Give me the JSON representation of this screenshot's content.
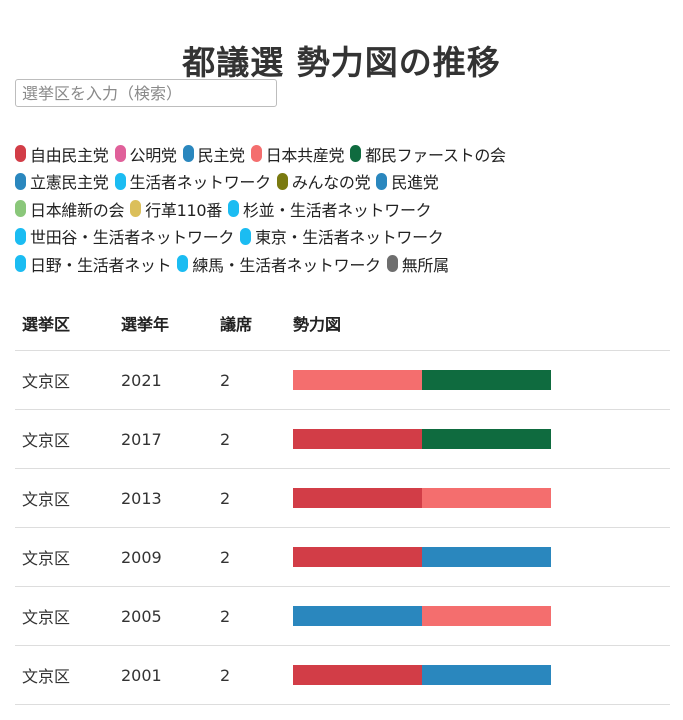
{
  "page": {
    "title": "都議選 勢力図の推移"
  },
  "search": {
    "placeholder": "選挙区を入力（検索）",
    "value": ""
  },
  "legend_rows": [
    [
      {
        "label": "自由民主党",
        "color": "#d23d47"
      },
      {
        "label": "公明党",
        "color": "#e0609a"
      },
      {
        "label": "民主党",
        "color": "#2a87be"
      },
      {
        "label": "日本共産党",
        "color": "#f46e6e"
      },
      {
        "label": "都民ファーストの会",
        "color": "#0f6b3f"
      }
    ],
    [
      {
        "label": "立憲民主党",
        "color": "#2a87be"
      },
      {
        "label": "生活者ネットワーク",
        "color": "#1bbcf2"
      },
      {
        "label": "みんなの党",
        "color": "#7a7a10"
      },
      {
        "label": "民進党",
        "color": "#2a87be"
      }
    ],
    [
      {
        "label": "日本維新の会",
        "color": "#8ac77a"
      },
      {
        "label": "行革110番",
        "color": "#dbbf5a"
      },
      {
        "label": "杉並・生活者ネットワーク",
        "color": "#1bbcf2"
      }
    ],
    [
      {
        "label": "世田谷・生活者ネットワーク",
        "color": "#1bbcf2"
      },
      {
        "label": "東京・生活者ネットワーク",
        "color": "#1bbcf2"
      }
    ],
    [
      {
        "label": "日野・生活者ネット",
        "color": "#1bbcf2"
      },
      {
        "label": "練馬・生活者ネットワーク",
        "color": "#1bbcf2"
      },
      {
        "label": "無所属",
        "color": "#6e6e6e"
      }
    ]
  ],
  "table": {
    "headers": {
      "district": "選挙区",
      "year": "選挙年",
      "seats": "議席",
      "chart": "勢力図"
    },
    "rows": [
      {
        "district": "文京区",
        "year": "2021",
        "seats": "2",
        "segments": [
          "#f46e6e",
          "#0f6b3f"
        ]
      },
      {
        "district": "文京区",
        "year": "2017",
        "seats": "2",
        "segments": [
          "#d23d47",
          "#0f6b3f"
        ]
      },
      {
        "district": "文京区",
        "year": "2013",
        "seats": "2",
        "segments": [
          "#d23d47",
          "#f46e6e"
        ]
      },
      {
        "district": "文京区",
        "year": "2009",
        "seats": "2",
        "segments": [
          "#d23d47",
          "#2a87be"
        ]
      },
      {
        "district": "文京区",
        "year": "2005",
        "seats": "2",
        "segments": [
          "#2a87be",
          "#f46e6e"
        ]
      },
      {
        "district": "文京区",
        "year": "2001",
        "seats": "2",
        "segments": [
          "#d23d47",
          "#2a87be"
        ]
      }
    ]
  }
}
